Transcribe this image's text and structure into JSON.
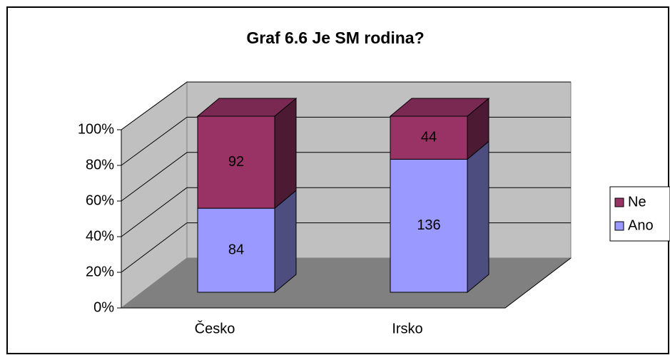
{
  "chart_data": {
    "type": "bar",
    "stacked": "percent",
    "title": "Graf 6.6 Je SM rodina?",
    "categories": [
      "Česko",
      "Irsko"
    ],
    "series": [
      {
        "name": "Ano",
        "color": "#9999ff",
        "values": [
          84,
          136
        ]
      },
      {
        "name": "Ne",
        "color": "#993366",
        "values": [
          92,
          44
        ]
      }
    ],
    "ylim": [
      0,
      100
    ],
    "yticks": [
      {
        "value": 0,
        "label": "0%"
      },
      {
        "value": 20,
        "label": "20%"
      },
      {
        "value": 40,
        "label": "40%"
      },
      {
        "value": 60,
        "label": "60%"
      },
      {
        "value": 80,
        "label": "80%"
      },
      {
        "value": 100,
        "label": "100%"
      }
    ],
    "grid": true,
    "legend": "right"
  }
}
